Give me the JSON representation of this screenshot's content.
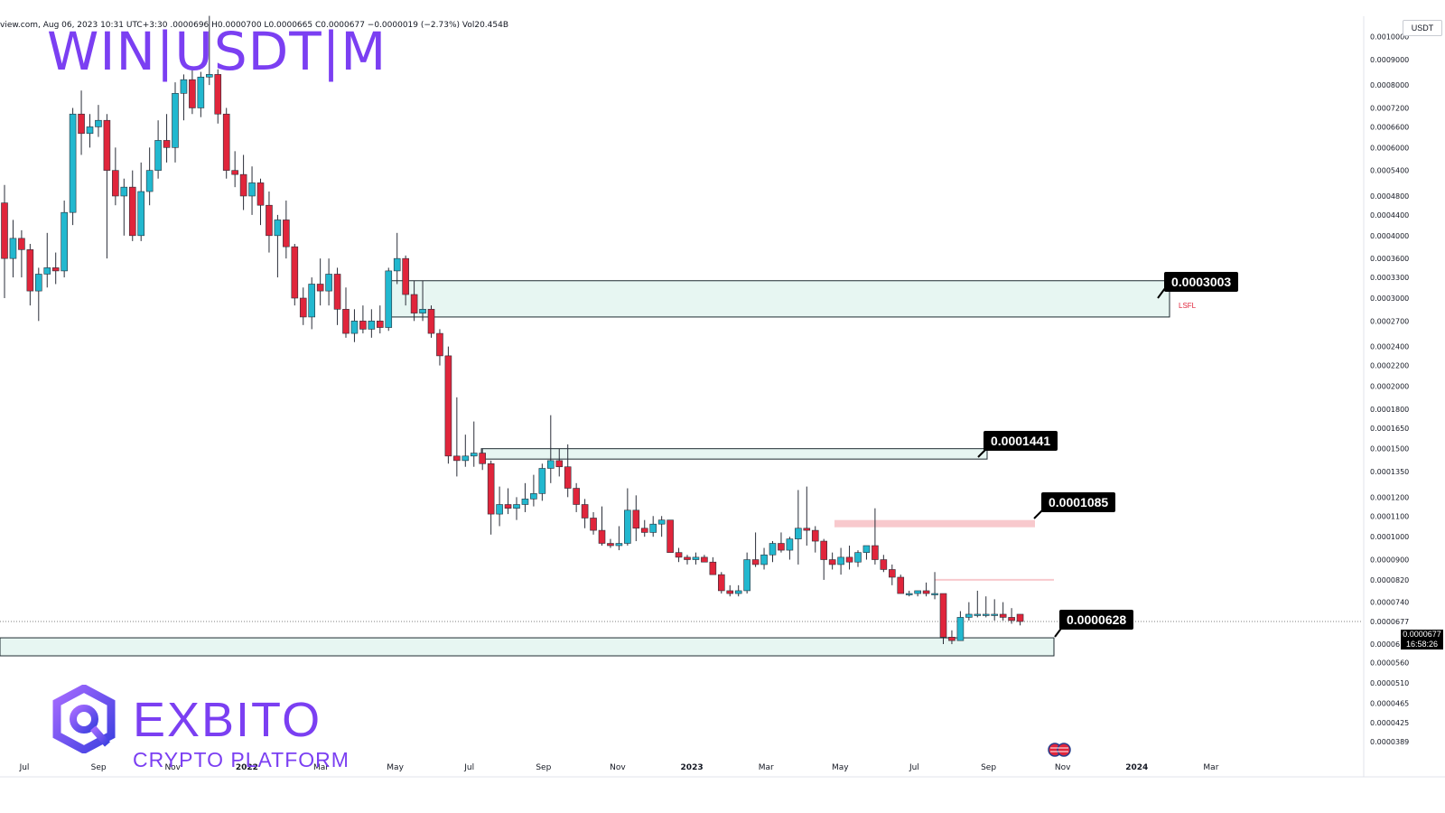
{
  "header": {
    "ohlc_text": "view.com, Aug 06, 2023 10:31 UTC+3:30   .0000696  H0.0000700  L0.0000665  C0.0000677  −0.0000019 (−2.73%)  Vol20.454B",
    "symbol_title": "WIN|USDT|M"
  },
  "axis": {
    "currency": "USDT",
    "last_price": "0.0000677",
    "countdown": "16:58:26"
  },
  "annotations": {
    "level_1": "0.0003003",
    "level_2": "0.0001441",
    "level_3": "0.0001085",
    "level_4": "0.0000628",
    "lsfl": "LSFL"
  },
  "logo": {
    "name": "EXBITO",
    "tagline": "CRYPTO PLATFORM"
  },
  "colors": {
    "up": "#22b8cf",
    "down": "#e0253b",
    "zone_fill": "#e7f6f2",
    "resistance_fill": "#f8c9cd",
    "brand": "#7b3ff2"
  },
  "chart_data": {
    "type": "candlestick",
    "scale": "log",
    "title": "WIN|USDT|M",
    "x_ticks": [
      "Jul",
      "Sep",
      "Nov",
      "2022",
      "Mar",
      "May",
      "Jul",
      "Sep",
      "Nov",
      "2023",
      "Mar",
      "May",
      "Jul",
      "Sep",
      "Nov",
      "2024",
      "Mar"
    ],
    "y_ticks": [
      "0.0010000",
      "0.0009000",
      "0.0008000",
      "0.0007200",
      "0.0006600",
      "0.0006000",
      "0.0005400",
      "0.0004800",
      "0.0004400",
      "0.0004000",
      "0.0003600",
      "0.0003300",
      "0.0003000",
      "0.0002700",
      "0.0002400",
      "0.0002200",
      "0.0002000",
      "0.0001800",
      "0.0001650",
      "0.0001500",
      "0.0001350",
      "0.0001200",
      "0.0001100",
      "0.0001000",
      "0.0000900",
      "0.0000820",
      "0.0000740",
      "0.0000677",
      "0.0000610",
      "0.0000560",
      "0.0000510",
      "0.0000465",
      "0.0000425",
      "0.0000389"
    ],
    "candles": [
      [
        0.000465,
        0.000505,
        0.0003,
        0.00036
      ],
      [
        0.00036,
        0.00043,
        0.00033,
        0.000395
      ],
      [
        0.000395,
        0.00041,
        0.00033,
        0.000375
      ],
      [
        0.000375,
        0.000385,
        0.00029,
        0.00031
      ],
      [
        0.00031,
        0.000345,
        0.00027,
        0.000335
      ],
      [
        0.000335,
        0.000405,
        0.000315,
        0.000345
      ],
      [
        0.000345,
        0.00037,
        0.00032,
        0.00034
      ],
      [
        0.00034,
        0.00047,
        0.00033,
        0.000445
      ],
      [
        0.000445,
        0.00072,
        0.00042,
        0.0007
      ],
      [
        0.0007,
        0.00078,
        0.00058,
        0.00064
      ],
      [
        0.00064,
        0.0007,
        0.0006,
        0.00066
      ],
      [
        0.00066,
        0.00073,
        0.00063,
        0.00068
      ],
      [
        0.00068,
        0.0007,
        0.00036,
        0.00054
      ],
      [
        0.00054,
        0.0006,
        0.00046,
        0.00048
      ],
      [
        0.00048,
        0.00052,
        0.0004,
        0.0005
      ],
      [
        0.0005,
        0.00054,
        0.00039,
        0.0004
      ],
      [
        0.0004,
        0.00056,
        0.00039,
        0.00049
      ],
      [
        0.00049,
        0.0006,
        0.00046,
        0.00054
      ],
      [
        0.00054,
        0.00068,
        0.00052,
        0.00062
      ],
      [
        0.00062,
        0.0007,
        0.00056,
        0.0006
      ],
      [
        0.0006,
        0.00081,
        0.00056,
        0.00077
      ],
      [
        0.00077,
        0.00084,
        0.00068,
        0.00082
      ],
      [
        0.00082,
        0.00087,
        0.0007,
        0.00072
      ],
      [
        0.00072,
        0.00085,
        0.00069,
        0.00083
      ],
      [
        0.00083,
        0.0011,
        0.0008,
        0.00084
      ],
      [
        0.00084,
        0.00086,
        0.00067,
        0.0007
      ],
      [
        0.0007,
        0.00072,
        0.00052,
        0.00054
      ],
      [
        0.00054,
        0.00059,
        0.0005,
        0.00053
      ],
      [
        0.00053,
        0.00058,
        0.00045,
        0.00048
      ],
      [
        0.00048,
        0.00055,
        0.00044,
        0.00051
      ],
      [
        0.00051,
        0.00052,
        0.00042,
        0.00046
      ],
      [
        0.00046,
        0.00049,
        0.00037,
        0.0004
      ],
      [
        0.0004,
        0.00044,
        0.00033,
        0.00043
      ],
      [
        0.00043,
        0.00047,
        0.00036,
        0.00038
      ],
      [
        0.00038,
        0.000385,
        0.00029,
        0.0003
      ],
      [
        0.0003,
        0.000315,
        0.000265,
        0.000275
      ],
      [
        0.000275,
        0.00033,
        0.00026,
        0.00032
      ],
      [
        0.00032,
        0.00036,
        0.00029,
        0.00031
      ],
      [
        0.00031,
        0.00036,
        0.00029,
        0.000335
      ],
      [
        0.000335,
        0.000345,
        0.000265,
        0.000285
      ],
      [
        0.000285,
        0.000315,
        0.00025,
        0.000255
      ],
      [
        0.000255,
        0.000285,
        0.000245,
        0.00027
      ],
      [
        0.00027,
        0.00029,
        0.000255,
        0.00026
      ],
      [
        0.00026,
        0.000285,
        0.00025,
        0.00027
      ],
      [
        0.00027,
        0.00029,
        0.000255,
        0.000262
      ],
      [
        0.000262,
        0.000345,
        0.000258,
        0.00034
      ],
      [
        0.00034,
        0.000405,
        0.00032,
        0.00036
      ],
      [
        0.00036,
        0.000365,
        0.00029,
        0.000305
      ],
      [
        0.000305,
        0.000325,
        0.00027,
        0.00028
      ],
      [
        0.00028,
        0.000325,
        0.00027,
        0.000285
      ],
      [
        0.000285,
        0.00029,
        0.00025,
        0.000255
      ],
      [
        0.000255,
        0.00026,
        0.00022,
        0.00023
      ],
      [
        0.00023,
        0.00024,
        0.00014,
        0.000145
      ],
      [
        0.000145,
        0.00019,
        0.000132,
        0.000142
      ],
      [
        0.000142,
        0.00016,
        0.000138,
        0.000145
      ],
      [
        0.000145,
        0.00017,
        0.000138,
        0.000147
      ],
      [
        0.000147,
        0.00015,
        0.000136,
        0.00014
      ],
      [
        0.00014,
        0.000142,
        0.000101,
        0.000111
      ],
      [
        0.000111,
        0.000126,
        0.000105,
        0.000116
      ],
      [
        0.000116,
        0.000125,
        0.000111,
        0.000114
      ],
      [
        0.000114,
        0.00012,
        0.000108,
        0.000116
      ],
      [
        0.000116,
        0.000128,
        0.000112,
        0.000119
      ],
      [
        0.000119,
        0.000133,
        0.000115,
        0.000122
      ],
      [
        0.000122,
        0.00014,
        0.000118,
        0.000137
      ],
      [
        0.000137,
        0.000175,
        0.000128,
        0.000142
      ],
      [
        0.000142,
        0.00015,
        0.000132,
        0.000138
      ],
      [
        0.000138,
        0.000153,
        0.00012,
        0.000125
      ],
      [
        0.000125,
        0.000128,
        0.000112,
        0.000116
      ],
      [
        0.000116,
        0.000119,
        0.000104,
        0.000109
      ],
      [
        0.000109,
        0.000112,
        0.000101,
        0.000103
      ],
      [
        0.000103,
        0.000115,
        9.6e-05,
        9.7e-05
      ],
      [
        9.7e-05,
        9.9e-05,
        9.5e-05,
        9.6e-05
      ],
      [
        9.6e-05,
        0.000105,
        9.4e-05,
        9.7e-05
      ],
      [
        9.7e-05,
        0.000125,
        9.6e-05,
        0.000113
      ],
      [
        0.000113,
        0.000121,
        9.8e-05,
        0.000104
      ],
      [
        0.000104,
        0.000108,
        0.0001,
        0.000102
      ],
      [
        0.000102,
        0.00011,
        0.0001,
        0.000106
      ],
      [
        0.000106,
        0.00011,
        0.0001,
        0.000108
      ],
      [
        0.000108,
        0.000108,
        9.6e-05,
        9.3e-05
      ],
      [
        9.3e-05,
        9.5e-05,
        8.9e-05,
        9.1e-05
      ],
      [
        9.1e-05,
        9.2e-05,
        8.8e-05,
        9e-05
      ],
      [
        9e-05,
        9.3e-05,
        8.8e-05,
        9.1e-05
      ],
      [
        9.1e-05,
        9.2e-05,
        8.9e-05,
        8.9e-05
      ],
      [
        8.9e-05,
        9.1e-05,
        8.4e-05,
        8.4e-05
      ],
      [
        8.4e-05,
        8.5e-05,
        7.7e-05,
        7.8e-05
      ],
      [
        7.8e-05,
        8e-05,
        7.6e-05,
        7.7e-05
      ],
      [
        7.7e-05,
        8e-05,
        7.6e-05,
        7.8e-05
      ],
      [
        7.8e-05,
        9.3e-05,
        7.7e-05,
        9e-05
      ],
      [
        9e-05,
        0.000102,
        8.7e-05,
        8.8e-05
      ],
      [
        8.8e-05,
        9.5e-05,
        8.6e-05,
        9.2e-05
      ],
      [
        9.2e-05,
        9.8e-05,
        8.9e-05,
        9.7e-05
      ],
      [
        9.7e-05,
        0.000102,
        9.3e-05,
        9.4e-05
      ],
      [
        9.4e-05,
        0.0001,
        9e-05,
        9.9e-05
      ],
      [
        9.9e-05,
        0.000124,
        8.8e-05,
        0.000104
      ],
      [
        0.000104,
        0.000126,
        9.6e-05,
        0.000103
      ],
      [
        0.000103,
        0.000105,
        9.3e-05,
        9.8e-05
      ],
      [
        9.8e-05,
        9.9e-05,
        8.2e-05,
        9e-05
      ],
      [
        9e-05,
        9.3e-05,
        8.6e-05,
        8.8e-05
      ],
      [
        8.8e-05,
        9.5e-05,
        8.4e-05,
        9.1e-05
      ],
      [
        9.1e-05,
        9.6e-05,
        8.6e-05,
        8.9e-05
      ],
      [
        8.9e-05,
        9.4e-05,
        8.7e-05,
        9.3e-05
      ],
      [
        9.3e-05,
        9.6e-05,
        9e-05,
        9.6e-05
      ],
      [
        9.6e-05,
        0.000114,
        8.8e-05,
        9e-05
      ],
      [
        9e-05,
        9.2e-05,
        8.5e-05,
        8.6e-05
      ],
      [
        8.6e-05,
        8.8e-05,
        8e-05,
        8.3e-05
      ],
      [
        8.3e-05,
        8.4e-05,
        7.7e-05,
        7.7e-05
      ],
      [
        7.7e-05,
        7.8e-05,
        7.6e-05,
        7.7e-05
      ],
      [
        7.7e-05,
        7.8e-05,
        7.6e-05,
        7.8e-05
      ],
      [
        7.8e-05,
        8.1e-05,
        7.6e-05,
        7.7e-05
      ],
      [
        7.7e-05,
        8.5e-05,
        7.5e-05,
        7.7e-05
      ],
      [
        7.7e-05,
        7.7e-05,
        6.1e-05,
        6.3e-05
      ],
      [
        6.3e-05,
        6.5e-05,
        6.1e-05,
        6.2e-05
      ],
      [
        6.2e-05,
        7.1e-05,
        6.2e-05,
        6.9e-05
      ],
      [
        6.9e-05,
        7.4e-05,
        6.8e-05,
        7e-05
      ],
      [
        7e-05,
        7.8e-05,
        6.9e-05,
        7e-05
      ],
      [
        7e-05,
        7.6e-05,
        6.9e-05,
        7e-05
      ],
      [
        7e-05,
        7.5e-05,
        6.8e-05,
        7e-05
      ],
      [
        7e-05,
        7.4e-05,
        6.8e-05,
        6.9e-05
      ],
      [
        6.9e-05,
        7.2e-05,
        6.7e-05,
        6.8e-05
      ],
      [
        7e-05,
        7e-05,
        6.65e-05,
        6.77e-05
      ]
    ],
    "zones": [
      {
        "label": "0.0003003",
        "low": 0.000275,
        "high": 0.000325
      },
      {
        "label": "0.0001441",
        "low": 0.000143,
        "high": 0.00015
      },
      {
        "label": "0.0000628",
        "low": 5.78e-05,
        "high": 6.28e-05
      }
    ]
  }
}
